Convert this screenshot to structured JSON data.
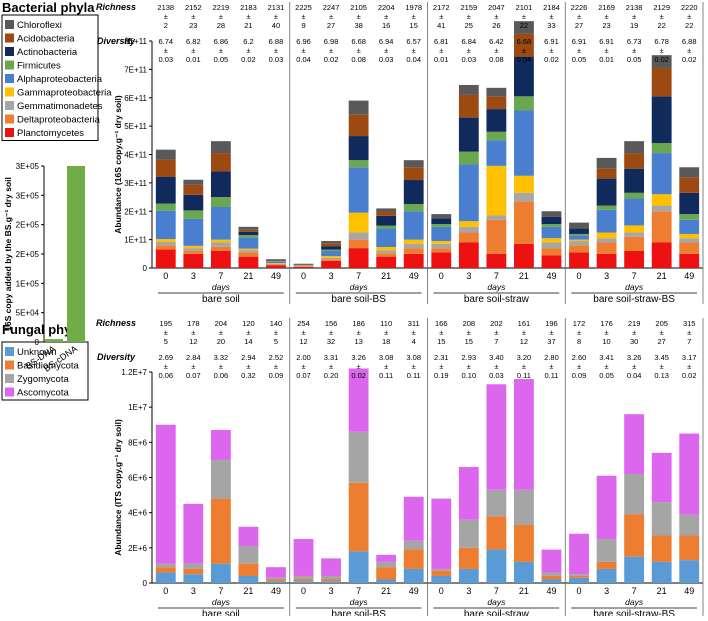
{
  "titles": {
    "bacteria": "Bacterial phyla",
    "fungi": "Fungal phyla"
  },
  "row_labels": {
    "richness": "Richness",
    "diversity": "Diversity",
    "pm": "±"
  },
  "bacterial_legend": [
    {
      "name": "Chloroflexi",
      "color": "#595959"
    },
    {
      "name": "Acidobacteria",
      "color": "#9c4a12"
    },
    {
      "name": "Actinobacteria",
      "color": "#102a5c"
    },
    {
      "name": "Firmicutes",
      "color": "#6aa84f"
    },
    {
      "name": "Alphaproteobacteria",
      "color": "#4a7fd0"
    },
    {
      "name": "Gammaproteobacteria",
      "color": "#ffc000"
    },
    {
      "name": "Gemmatimonadetes",
      "color": "#a6a6a6"
    },
    {
      "name": "Deltaproteobacteria",
      "color": "#ed7d31"
    },
    {
      "name": "Planctomycetes",
      "color": "#ee1111"
    }
  ],
  "fungal_legend": [
    {
      "name": "Unknown",
      "color": "#5b9bd5"
    },
    {
      "name": "Basidiomycota",
      "color": "#ed7d31"
    },
    {
      "name": "Zygomycota",
      "color": "#a5a5a5"
    },
    {
      "name": "Ascomycota",
      "color": "#dd66ee"
    }
  ],
  "chart_data": [
    {
      "type": "bar",
      "title": "16S copy added by the BS",
      "ylabel": "16S copy added by the BS.g⁻¹ dry soil",
      "categories": [
        "BS-DNA",
        "BS-cDNA"
      ],
      "values": [
        5000,
        300000
      ],
      "ylim": [
        0,
        300000
      ],
      "yticks": [
        "0",
        "5E+04",
        "1E+05",
        "2E+05",
        "2E+05",
        "3E+05",
        "3E+05"
      ],
      "color": "#70ad47"
    },
    {
      "type": "bar",
      "stacked": true,
      "title": "Bacterial phyla",
      "ylabel": "Abundance (16S copy.g⁻¹ dry soil)",
      "xlabel": "days",
      "ylim": [
        0,
        800000000000
      ],
      "yticks": [
        "0",
        "1E+11",
        "2E+11",
        "3E+11",
        "4E+11",
        "5E+11",
        "6E+11",
        "7E+11",
        "8E+11"
      ],
      "groups": [
        "bare soil",
        "bare soil-BS",
        "bare soil-straw",
        "bare soil-straw-BS"
      ],
      "days": [
        "0",
        "3",
        "7",
        "21",
        "49"
      ],
      "series_order": [
        "Planctomycetes",
        "Deltaproteobacteria",
        "Gemmatimonadetes",
        "Gammaproteobacteria",
        "Alphaproteobacteria",
        "Firmicutes",
        "Actinobacteria",
        "Acidobacteria",
        "Chloroflexi"
      ],
      "bars": [
        [
          65,
          15,
          12,
          10,
          100,
          25,
          95,
          60,
          35
        ],
        [
          50,
          10,
          10,
          8,
          95,
          30,
          55,
          35,
          18
        ],
        [
          60,
          15,
          15,
          10,
          115,
          35,
          90,
          65,
          42
        ],
        [
          40,
          15,
          8,
          5,
          40,
          8,
          12,
          7,
          10
        ],
        [
          10,
          3,
          2,
          2,
          5,
          2,
          2,
          2,
          3
        ],
        [
          4,
          2,
          1,
          1,
          2,
          1,
          1,
          2,
          1
        ],
        [
          25,
          6,
          5,
          6,
          18,
          5,
          12,
          10,
          8
        ],
        [
          70,
          30,
          25,
          70,
          160,
          25,
          85,
          75,
          50
        ],
        [
          40,
          12,
          10,
          12,
          65,
          10,
          35,
          15,
          11
        ],
        [
          50,
          20,
          15,
          15,
          100,
          25,
          85,
          45,
          25
        ],
        [
          55,
          15,
          15,
          10,
          50,
          10,
          20,
          0,
          15
        ],
        [
          90,
          35,
          20,
          20,
          200,
          45,
          120,
          80,
          35
        ],
        [
          50,
          120,
          15,
          175,
          90,
          30,
          80,
          45,
          30
        ],
        [
          85,
          150,
          30,
          60,
          230,
          50,
          140,
          80,
          45
        ],
        [
          45,
          25,
          20,
          15,
          40,
          10,
          25,
          0,
          20
        ],
        [
          55,
          25,
          15,
          5,
          15,
          5,
          20,
          0,
          20
        ],
        [
          50,
          40,
          15,
          20,
          80,
          15,
          95,
          35,
          38
        ],
        [
          60,
          50,
          15,
          25,
          95,
          20,
          85,
          55,
          42
        ],
        [
          90,
          110,
          20,
          40,
          145,
          35,
          165,
          100,
          45
        ],
        [
          50,
          40,
          15,
          15,
          50,
          20,
          75,
          55,
          35
        ]
      ],
      "richness": [
        [
          "2138",
          "2"
        ],
        [
          "2152",
          "23"
        ],
        [
          "2219",
          "28"
        ],
        [
          "2183",
          "21"
        ],
        [
          "2131",
          "40"
        ],
        [
          "2225",
          "9"
        ],
        [
          "2247",
          "27"
        ],
        [
          "2105",
          "38"
        ],
        [
          "2204",
          "16"
        ],
        [
          "1978",
          "15"
        ],
        [
          "2172",
          "41"
        ],
        [
          "2159",
          "25"
        ],
        [
          "2047",
          "26"
        ],
        [
          "2101",
          "22"
        ],
        [
          "2184",
          "33"
        ],
        [
          "2226",
          "27"
        ],
        [
          "2169",
          "23"
        ],
        [
          "2138",
          "19"
        ],
        [
          "2129",
          "22"
        ],
        [
          "2220",
          "22"
        ]
      ],
      "diversity": [
        [
          "6.74",
          "0.03"
        ],
        [
          "6.82",
          "0.01"
        ],
        [
          "6.86",
          "0.05"
        ],
        [
          "6.2",
          "0.02"
        ],
        [
          "6.88",
          "0.03"
        ],
        [
          "6.96",
          "0.04"
        ],
        [
          "6.98",
          "0.02"
        ],
        [
          "6.68",
          "0.08"
        ],
        [
          "6.94",
          "0.03"
        ],
        [
          "6.57",
          "0.04"
        ],
        [
          "6.81",
          "0.01"
        ],
        [
          "6.84",
          "0.03"
        ],
        [
          "6.42",
          "0.08"
        ],
        [
          "6.68",
          "0.04"
        ],
        [
          "6.91",
          "0.02"
        ],
        [
          "6.91",
          "0.05"
        ],
        [
          "6.91",
          "0.01"
        ],
        [
          "6.73",
          "0.05"
        ],
        [
          "6.78",
          "0.02"
        ],
        [
          "6.88",
          "0.02"
        ]
      ]
    },
    {
      "type": "bar",
      "stacked": true,
      "title": "Fungal phyla",
      "ylabel": "Abundance (ITS copy.g⁻¹ dry soil)",
      "xlabel": "days",
      "ylim": [
        0,
        12000000
      ],
      "yticks": [
        "0",
        "2E+6",
        "4E+6",
        "6E+6",
        "8E+6",
        "1E+7",
        "1.2E+7"
      ],
      "groups": [
        "bare soil",
        "bare soil-BS",
        "bare soil-straw",
        "bare soil-straw-BS"
      ],
      "days": [
        "0",
        "3",
        "7",
        "21",
        "49"
      ],
      "series_order": [
        "Unknown",
        "Basidiomycota",
        "Zygomycota",
        "Ascomycota"
      ],
      "bars": [
        [
          0.6,
          0.3,
          0.2,
          7.9
        ],
        [
          0.5,
          0.3,
          0.3,
          3.4
        ],
        [
          1.1,
          3.7,
          2.2,
          1.7
        ],
        [
          0.4,
          0.7,
          1.0,
          1.1
        ],
        [
          0.1,
          0.1,
          0.1,
          0.6
        ],
        [
          0.1,
          0.1,
          0.2,
          2.1
        ],
        [
          0.1,
          0.1,
          0.2,
          1.0
        ],
        [
          1.8,
          3.9,
          2.9,
          3.6
        ],
        [
          0.2,
          0.7,
          0.3,
          0.4
        ],
        [
          0.8,
          1.1,
          0.5,
          2.5
        ],
        [
          0.4,
          0.3,
          0.1,
          4.0
        ],
        [
          0.8,
          1.2,
          1.6,
          3.0
        ],
        [
          1.9,
          1.9,
          1.5,
          6.0
        ],
        [
          1.2,
          2.1,
          2.0,
          6.3
        ],
        [
          0.2,
          0.2,
          0.2,
          1.3
        ],
        [
          0.3,
          0.1,
          0.1,
          2.3
        ],
        [
          0.8,
          0.4,
          1.3,
          3.6
        ],
        [
          1.5,
          2.4,
          2.3,
          3.4
        ],
        [
          1.2,
          1.5,
          1.9,
          2.8
        ],
        [
          1.3,
          1.4,
          1.2,
          4.6
        ]
      ],
      "richness": [
        [
          "195",
          "5"
        ],
        [
          "178",
          "12"
        ],
        [
          "204",
          "20"
        ],
        [
          "120",
          "14"
        ],
        [
          "140",
          "5"
        ],
        [
          "254",
          "12"
        ],
        [
          "156",
          "32"
        ],
        [
          "186",
          "13"
        ],
        [
          "110",
          "18"
        ],
        [
          "311",
          "4"
        ],
        [
          "166",
          "15"
        ],
        [
          "208",
          "15"
        ],
        [
          "202",
          "7"
        ],
        [
          "161",
          "12"
        ],
        [
          "196",
          "37"
        ],
        [
          "172",
          "8"
        ],
        [
          "176",
          "10"
        ],
        [
          "219",
          "30"
        ],
        [
          "205",
          "27"
        ],
        [
          "315",
          "7"
        ]
      ],
      "diversity": [
        [
          "2.69",
          "0.06"
        ],
        [
          "2.84",
          "0.07"
        ],
        [
          "3.32",
          "0.06"
        ],
        [
          "2.94",
          "0.32"
        ],
        [
          "2.52",
          "0.09"
        ],
        [
          "2.00",
          "0.07"
        ],
        [
          "3.31",
          "0.20"
        ],
        [
          "3.26",
          "0.02"
        ],
        [
          "3.08",
          "0.11"
        ],
        [
          "3.08",
          "0.11"
        ],
        [
          "2.31",
          "0.19"
        ],
        [
          "2.93",
          "0.10"
        ],
        [
          "3.40",
          "0.03"
        ],
        [
          "3.20",
          "0.11"
        ],
        [
          "2.80",
          "0.11"
        ],
        [
          "2.60",
          "0.09"
        ],
        [
          "3.41",
          "0.05"
        ],
        [
          "3.26",
          "0.04"
        ],
        [
          "3.45",
          "0.13"
        ],
        [
          "3.17",
          "0.02"
        ]
      ]
    }
  ]
}
